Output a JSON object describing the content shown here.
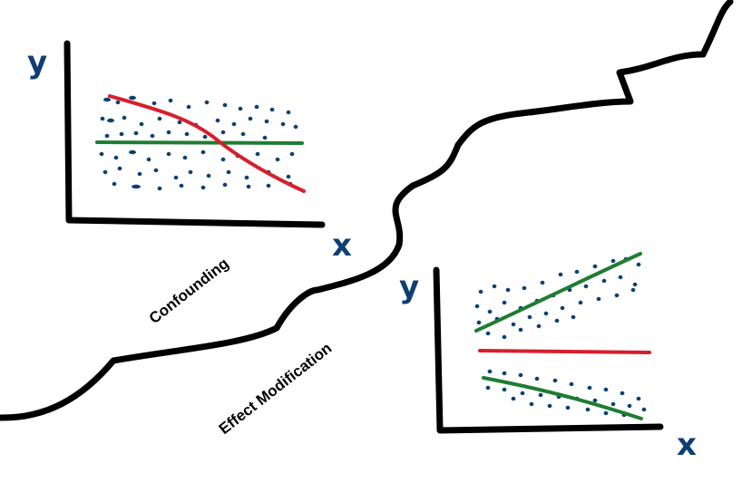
{
  "labels": {
    "confounding": "Confounding",
    "effect_modification": "Effect Modification"
  },
  "panels": {
    "left": {
      "y_axis": "y",
      "x_axis": "x"
    },
    "right": {
      "y_axis": "y",
      "x_axis": "x"
    }
  },
  "colors": {
    "ink": "#000000",
    "axis_text": "#0d3f73",
    "dots": "#0d3f73",
    "red_line": "#d61f2c",
    "green_line": "#1e7d32"
  }
}
